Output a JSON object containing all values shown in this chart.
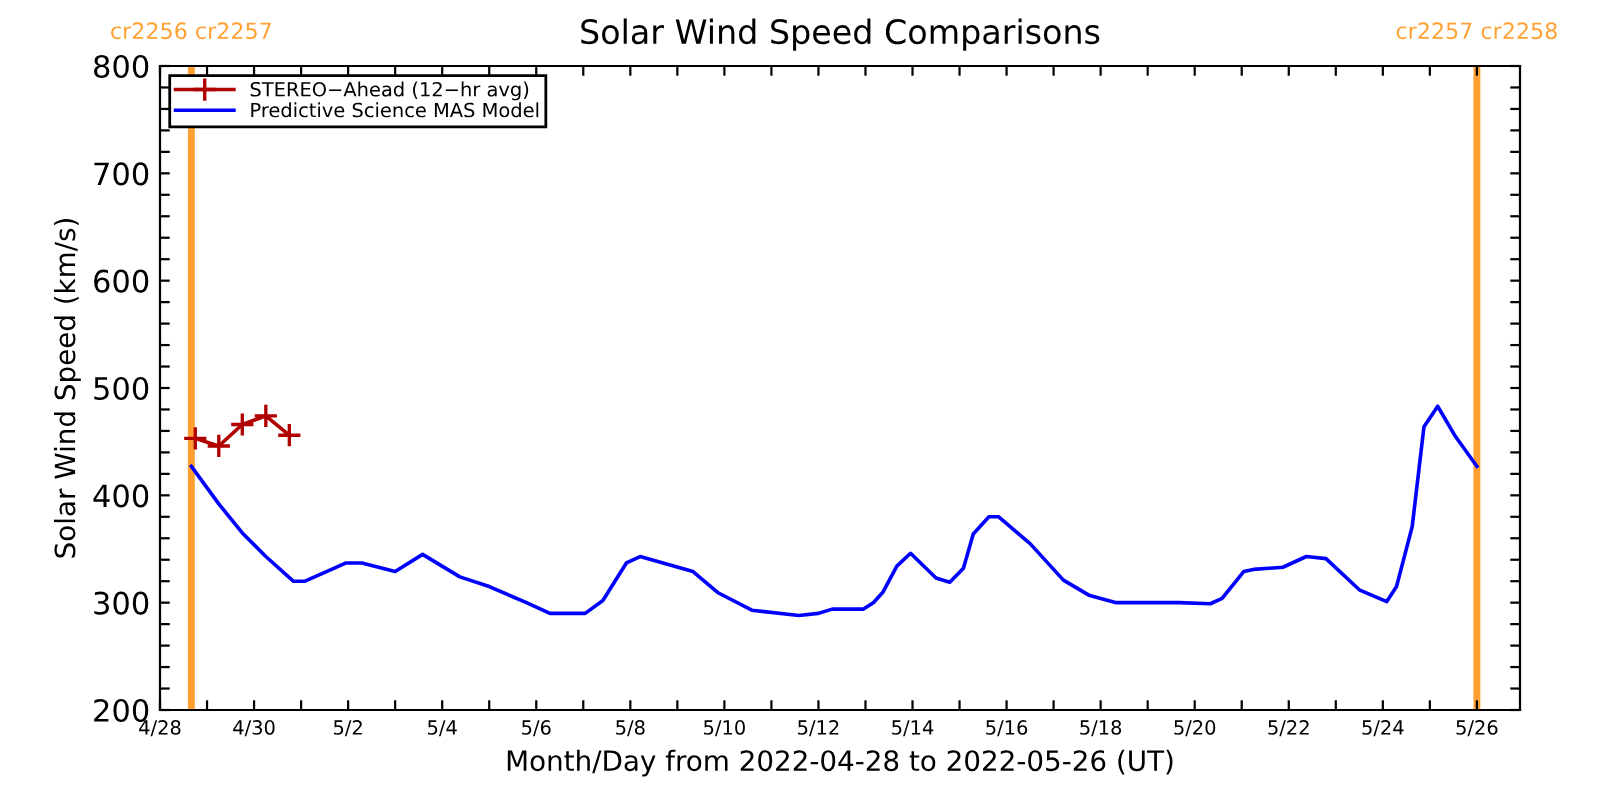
{
  "chart_data": {
    "type": "line",
    "title": "Solar Wind Speed Comparisons",
    "xlabel": "Month/Day from 2022-04-28 to 2022-05-26 (UT)",
    "ylabel": "Solar Wind Speed (km/s)",
    "xlim": [
      "2022-04-28T00:00",
      "2022-05-26T22:00"
    ],
    "xticks": [
      {
        "value": "2022-04-28",
        "label": "4/28"
      },
      {
        "value": "2022-04-29",
        "label": null
      },
      {
        "value": "2022-04-30",
        "label": "4/30"
      },
      {
        "value": "2022-05-01",
        "label": null
      },
      {
        "value": "2022-05-02",
        "label": "5/2"
      },
      {
        "value": "2022-05-03",
        "label": null
      },
      {
        "value": "2022-05-04",
        "label": "5/4"
      },
      {
        "value": "2022-05-05",
        "label": null
      },
      {
        "value": "2022-05-06",
        "label": "5/6"
      },
      {
        "value": "2022-05-07",
        "label": null
      },
      {
        "value": "2022-05-08",
        "label": "5/8"
      },
      {
        "value": "2022-05-09",
        "label": null
      },
      {
        "value": "2022-05-10",
        "label": "5/10"
      },
      {
        "value": "2022-05-11",
        "label": null
      },
      {
        "value": "2022-05-12",
        "label": "5/12"
      },
      {
        "value": "2022-05-13",
        "label": null
      },
      {
        "value": "2022-05-14",
        "label": "5/14"
      },
      {
        "value": "2022-05-15",
        "label": null
      },
      {
        "value": "2022-05-16",
        "label": "5/16"
      },
      {
        "value": "2022-05-17",
        "label": null
      },
      {
        "value": "2022-05-18",
        "label": "5/18"
      },
      {
        "value": "2022-05-19",
        "label": null
      },
      {
        "value": "2022-05-20",
        "label": "5/20"
      },
      {
        "value": "2022-05-21",
        "label": null
      },
      {
        "value": "2022-05-22",
        "label": "5/22"
      },
      {
        "value": "2022-05-23",
        "label": null
      },
      {
        "value": "2022-05-24",
        "label": "5/24"
      },
      {
        "value": "2022-05-25",
        "label": null
      },
      {
        "value": "2022-05-26",
        "label": "5/26"
      }
    ],
    "ylim": [
      200,
      800
    ],
    "yticks": [
      200,
      {
        "value": 220,
        "label": null
      },
      {
        "value": 240,
        "label": null
      },
      {
        "value": 260,
        "label": null
      },
      {
        "value": 280,
        "label": null
      },
      300,
      {
        "value": 320,
        "label": null
      },
      {
        "value": 340,
        "label": null
      },
      {
        "value": 360,
        "label": null
      },
      {
        "value": 380,
        "label": null
      },
      400,
      {
        "value": 420,
        "label": null
      },
      {
        "value": 440,
        "label": null
      },
      {
        "value": 460,
        "label": null
      },
      {
        "value": 480,
        "label": null
      },
      500,
      {
        "value": 520,
        "label": null
      },
      {
        "value": 540,
        "label": null
      },
      {
        "value": 560,
        "label": null
      },
      {
        "value": 580,
        "label": null
      },
      600,
      {
        "value": 620,
        "label": null
      },
      {
        "value": 640,
        "label": null
      },
      {
        "value": 660,
        "label": null
      },
      {
        "value": 680,
        "label": null
      },
      700,
      {
        "value": 720,
        "label": null
      },
      {
        "value": 740,
        "label": null
      },
      {
        "value": 760,
        "label": null
      },
      {
        "value": 780,
        "label": null
      },
      800
    ],
    "grid": false,
    "legend": "top left",
    "series": [
      {
        "name": "STEREO−Ahead (12−hr avg)",
        "color": "#b00000",
        "marker": "cross",
        "x": [
          "2022-04-28T18:00",
          "2022-04-29T06:00",
          "2022-04-29T18:00",
          "2022-04-30T06:00",
          "2022-04-30T18:00"
        ],
        "values": [
          453,
          446,
          466,
          474,
          456
        ]
      },
      {
        "name": "Predictive Science MAS Model",
        "color": "#0000ff",
        "x": [
          "2022-04-28T16:00",
          "2022-04-29T06:00",
          "2022-04-29T18:00",
          "2022-04-30T06:00",
          "2022-04-30T20:00",
          "2022-05-01T02:00",
          "2022-05-01T23:00",
          "2022-05-02T07:00",
          "2022-05-03T00:00",
          "2022-05-03T14:00",
          "2022-05-04T09:00",
          "2022-05-05T00:00",
          "2022-05-05T19:00",
          "2022-05-06T07:00",
          "2022-05-07T01:00",
          "2022-05-07T10:00",
          "2022-05-07T22:00",
          "2022-05-08T05:00",
          "2022-05-09T08:00",
          "2022-05-09T21:00",
          "2022-05-10T14:00",
          "2022-05-11T14:00",
          "2022-05-12T00:00",
          "2022-05-12T07:00",
          "2022-05-12T23:00",
          "2022-05-13T04:00",
          "2022-05-13T09:00",
          "2022-05-13T16:00",
          "2022-05-13T23:00",
          "2022-05-14T12:00",
          "2022-05-14T19:00",
          "2022-05-15T02:00",
          "2022-05-15T07:00",
          "2022-05-15T15:00",
          "2022-05-15T20:00",
          "2022-05-16T12:00",
          "2022-05-17T05:00",
          "2022-05-17T18:00",
          "2022-05-18T08:00",
          "2022-05-19T16:00",
          "2022-05-20T08:00",
          "2022-05-20T14:00",
          "2022-05-21T01:00",
          "2022-05-21T06:00",
          "2022-05-21T21:00",
          "2022-05-22T09:00",
          "2022-05-22T19:00",
          "2022-05-23T12:00",
          "2022-05-24T02:00",
          "2022-05-24T07:00",
          "2022-05-24T15:00",
          "2022-05-24T21:00",
          "2022-05-25T04:00",
          "2022-05-25T13:00",
          "2022-05-26T00:00"
        ],
        "values": [
          427,
          392,
          365,
          343,
          320,
          320,
          337,
          337,
          329,
          345,
          324,
          315,
          300,
          290,
          290,
          302,
          337,
          343,
          329,
          309,
          293,
          288,
          290,
          294,
          294,
          300,
          310,
          334,
          346,
          323,
          319,
          332,
          364,
          380,
          380,
          355,
          321,
          307,
          300,
          300,
          299,
          304,
          329,
          331,
          333,
          343,
          341,
          312,
          301,
          315,
          371,
          464,
          483,
          455,
          427
        ]
      }
    ],
    "ref_lines": [
      {
        "axis": "x",
        "value": "2022-04-28T16:00",
        "label": "cr2256 cr2257",
        "color": "#ffa030"
      },
      {
        "axis": "x",
        "value": "2022-05-26T00:00",
        "label": "cr2257 cr2258",
        "color": "#ffa030"
      }
    ]
  }
}
